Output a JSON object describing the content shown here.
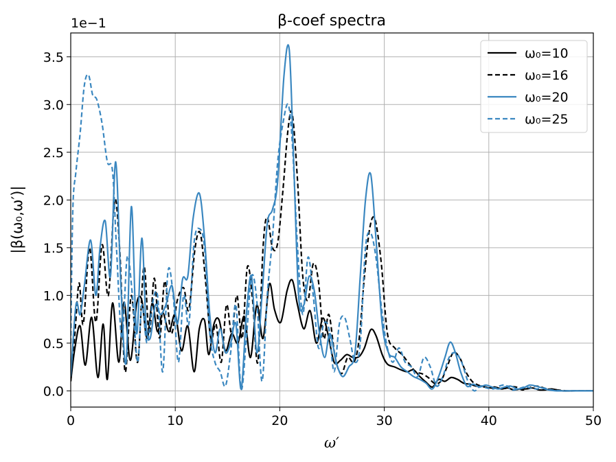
{
  "chart_data": {
    "type": "line",
    "title": "β-coef spectra",
    "xlabel": "ω′",
    "ylabel": "|β(ω₀,ω′)|",
    "y_offset_label": "1e−1",
    "xlim": [
      0,
      50
    ],
    "ylim": [
      -0.17,
      3.75
    ],
    "x_ticks": [
      0,
      10,
      20,
      30,
      40,
      50
    ],
    "y_ticks": [
      0.0,
      0.5,
      1.0,
      1.5,
      2.0,
      2.5,
      3.0,
      3.5
    ],
    "x_tick_labels": [
      "0",
      "10",
      "20",
      "30",
      "40",
      "50"
    ],
    "y_tick_labels": [
      "0.0",
      "0.5",
      "1.0",
      "1.5",
      "2.0",
      "2.5",
      "3.0",
      "3.5"
    ],
    "grid": true,
    "legend_position": "top-right",
    "colors": {
      "black": "#000000",
      "blue": "#3a87c0"
    },
    "series": [
      {
        "name": "ω₀=10",
        "color": "#000000",
        "dash": "solid",
        "x": [
          0,
          0.4,
          0.9,
          1.4,
          2.0,
          2.6,
          3.1,
          3.5,
          4.0,
          4.6,
          5.1,
          5.7,
          6.3,
          6.8,
          7.3,
          7.8,
          8.3,
          8.8,
          9.4,
          10.0,
          10.6,
          11.2,
          11.8,
          12.3,
          12.8,
          13.2,
          13.7,
          14.2,
          14.8,
          15.4,
          16.0,
          16.6,
          17.2,
          17.8,
          18.4,
          19.0,
          19.5,
          20.1,
          20.7,
          21.2,
          21.7,
          22.3,
          22.9,
          23.5,
          24.1,
          24.6,
          25.2,
          25.8,
          26.4,
          27.0,
          27.6,
          28.1,
          28.7,
          29.2,
          29.8,
          30.3,
          31.0,
          31.6,
          32.2,
          32.8,
          33.4,
          34.0,
          34.6,
          35.2,
          35.8,
          36.4,
          37.0,
          37.6,
          38.2,
          38.8,
          39.4,
          40.0,
          40.6,
          41.2,
          41.8,
          42.4,
          43.0,
          43.6,
          44.2,
          44.8,
          45.4,
          46.0,
          47.0,
          48.0,
          49.0,
          50.0
        ],
        "y": [
          0.1,
          0.45,
          0.68,
          0.27,
          0.77,
          0.14,
          0.7,
          0.12,
          0.92,
          0.3,
          0.93,
          0.32,
          0.91,
          0.95,
          0.55,
          0.92,
          0.62,
          0.82,
          0.62,
          0.8,
          0.42,
          0.68,
          0.2,
          0.65,
          0.74,
          0.38,
          0.7,
          0.74,
          0.42,
          0.6,
          0.5,
          0.78,
          0.35,
          0.9,
          0.55,
          1.12,
          0.85,
          0.72,
          1.05,
          1.16,
          0.9,
          0.65,
          0.84,
          0.5,
          0.76,
          0.6,
          0.3,
          0.32,
          0.38,
          0.35,
          0.36,
          0.45,
          0.64,
          0.58,
          0.38,
          0.28,
          0.25,
          0.22,
          0.2,
          0.22,
          0.15,
          0.09,
          0.04,
          0.12,
          0.1,
          0.14,
          0.12,
          0.08,
          0.07,
          0.05,
          0.05,
          0.03,
          0.04,
          0.02,
          0.03,
          0.01,
          0.02,
          0.02,
          0.03,
          0.01,
          0.01,
          0.02,
          0.0,
          0.0,
          0.0,
          0.0
        ]
      },
      {
        "name": "ω₀=16",
        "color": "#000000",
        "dash": "dashed",
        "x": [
          0,
          0.4,
          0.8,
          1.2,
          1.8,
          2.4,
          3.0,
          3.6,
          4.2,
          4.7,
          5.2,
          5.8,
          6.4,
          7.0,
          7.5,
          8.0,
          8.5,
          9.0,
          9.6,
          10.2,
          10.8,
          11.3,
          11.9,
          12.4,
          12.9,
          13.4,
          13.9,
          14.4,
          14.9,
          15.4,
          15.9,
          16.4,
          16.9,
          17.4,
          17.9,
          18.4,
          18.8,
          19.3,
          19.8,
          20.3,
          20.8,
          21.2,
          21.7,
          22.2,
          22.7,
          23.2,
          23.7,
          24.2,
          24.7,
          25.3,
          25.9,
          26.5,
          27.1,
          27.6,
          28.1,
          28.6,
          29.1,
          29.7,
          30.3,
          31.0,
          31.7,
          32.4,
          33.0,
          33.6,
          34.2,
          34.8,
          35.4,
          36.0,
          36.6,
          37.2,
          37.8,
          38.4,
          39.0,
          39.6,
          40.2,
          40.8,
          41.4,
          42.0,
          42.6,
          43.2,
          43.8,
          44.4,
          45.0,
          45.6,
          46.5,
          47.5,
          48.5,
          50.0
        ],
        "y": [
          0.1,
          0.6,
          1.13,
          0.7,
          1.5,
          0.72,
          1.53,
          1.0,
          2.0,
          1.45,
          0.2,
          1.0,
          0.3,
          1.3,
          0.6,
          1.18,
          0.55,
          1.15,
          0.6,
          0.95,
          1.08,
          0.85,
          1.5,
          1.65,
          1.15,
          0.55,
          0.7,
          0.3,
          0.9,
          0.6,
          1.0,
          0.55,
          1.3,
          0.95,
          0.3,
          1.5,
          1.82,
          1.5,
          1.55,
          2.1,
          2.75,
          2.9,
          2.2,
          1.2,
          0.95,
          1.33,
          1.15,
          0.55,
          0.8,
          0.35,
          0.18,
          0.35,
          0.3,
          0.55,
          1.2,
          1.7,
          1.8,
          1.35,
          0.6,
          0.45,
          0.38,
          0.28,
          0.2,
          0.18,
          0.14,
          0.08,
          0.1,
          0.25,
          0.4,
          0.35,
          0.2,
          0.1,
          0.06,
          0.04,
          0.03,
          0.03,
          0.02,
          0.04,
          0.04,
          0.01,
          0.03,
          0.05,
          0.04,
          0.02,
          0.01,
          0.0,
          0.0,
          0.0
        ]
      },
      {
        "name": "ω₀=20",
        "color": "#3a87c0",
        "dash": "solid",
        "x": [
          0,
          0.5,
          0.9,
          1.3,
          1.9,
          2.4,
          2.8,
          3.3,
          3.8,
          4.3,
          4.8,
          5.3,
          5.8,
          6.3,
          6.8,
          7.2,
          7.6,
          8.1,
          8.6,
          9.1,
          9.7,
          10.2,
          10.7,
          11.2,
          11.7,
          12.3,
          12.8,
          13.3,
          13.8,
          14.3,
          14.8,
          15.3,
          15.8,
          16.3,
          16.8,
          17.3,
          17.8,
          18.3,
          18.8,
          19.3,
          19.8,
          20.4,
          20.9,
          21.3,
          21.8,
          22.3,
          22.8,
          23.3,
          23.8,
          24.3,
          24.8,
          25.4,
          26.0,
          26.6,
          27.2,
          27.7,
          28.2,
          28.7,
          29.2,
          29.8,
          30.4,
          31.0,
          31.6,
          32.2,
          32.8,
          33.4,
          34.0,
          34.6,
          35.2,
          35.8,
          36.3,
          36.8,
          37.3,
          37.9,
          38.5,
          39.1,
          39.7,
          40.3,
          40.9,
          41.5,
          42.1,
          42.7,
          43.3,
          43.9,
          44.5,
          45.1,
          45.7,
          46.5,
          47.5,
          48.5,
          50.0
        ],
        "y": [
          0.15,
          0.9,
          0.8,
          1.1,
          1.58,
          1.0,
          1.5,
          1.78,
          1.2,
          2.4,
          1.1,
          0.3,
          1.93,
          0.6,
          1.6,
          0.7,
          0.55,
          0.9,
          0.8,
          0.9,
          1.1,
          0.7,
          1.17,
          1.2,
          1.8,
          2.07,
          1.6,
          0.8,
          0.4,
          0.65,
          0.4,
          0.5,
          0.7,
          0.02,
          0.8,
          1.2,
          0.4,
          1.0,
          1.75,
          1.9,
          2.2,
          3.3,
          3.58,
          2.5,
          1.0,
          0.9,
          1.2,
          1.05,
          0.6,
          0.35,
          0.6,
          0.3,
          0.15,
          0.25,
          0.4,
          1.2,
          2.0,
          2.27,
          1.6,
          0.7,
          0.4,
          0.35,
          0.25,
          0.2,
          0.15,
          0.12,
          0.08,
          0.02,
          0.15,
          0.35,
          0.51,
          0.4,
          0.2,
          0.05,
          0.07,
          0.04,
          0.06,
          0.04,
          0.02,
          0.04,
          0.05,
          0.02,
          0.03,
          0.06,
          0.05,
          0.03,
          0.01,
          0.0,
          0.0,
          0.0,
          0.0
        ]
      },
      {
        "name": "ω₀=25",
        "color": "#3a87c0",
        "dash": "dashed",
        "x": [
          0,
          0.2,
          0.5,
          0.9,
          1.3,
          1.7,
          2.1,
          2.5,
          3.0,
          3.5,
          4.0,
          4.4,
          4.9,
          5.4,
          5.9,
          6.4,
          6.8,
          7.3,
          7.8,
          8.3,
          8.8,
          9.3,
          9.8,
          10.3,
          10.8,
          11.3,
          11.8,
          12.3,
          12.8,
          13.3,
          13.8,
          14.3,
          14.8,
          15.3,
          15.8,
          16.3,
          16.8,
          17.3,
          17.8,
          18.3,
          18.8,
          19.3,
          19.8,
          20.3,
          20.8,
          21.2,
          21.7,
          22.2,
          22.7,
          23.2,
          23.7,
          24.2,
          24.7,
          25.2,
          25.7,
          26.2,
          26.7,
          27.2,
          27.7,
          28.2,
          28.7,
          29.2,
          29.7,
          30.2,
          30.8,
          31.4,
          32.0,
          32.6,
          33.2,
          33.8,
          34.4,
          35.0,
          35.6,
          36.2,
          36.8,
          37.4,
          38.0,
          38.6,
          39.2,
          39.8,
          40.4,
          41.0,
          41.6,
          42.2,
          42.8,
          43.4,
          44.0,
          44.6,
          45.2,
          46.0,
          47.0,
          48.0,
          50.0
        ],
        "y": [
          0.5,
          1.9,
          2.3,
          2.7,
          3.2,
          3.31,
          3.1,
          3.05,
          2.8,
          2.4,
          2.3,
          1.45,
          0.55,
          1.4,
          1.0,
          0.3,
          0.9,
          0.5,
          0.9,
          1.0,
          0.2,
          1.25,
          1.0,
          0.3,
          1.0,
          0.7,
          1.55,
          1.7,
          1.5,
          0.6,
          0.3,
          0.2,
          0.05,
          0.4,
          0.9,
          0.02,
          0.55,
          1.2,
          0.95,
          0.1,
          1.0,
          1.6,
          2.4,
          2.8,
          3.0,
          2.6,
          1.5,
          0.8,
          1.4,
          1.0,
          0.45,
          0.7,
          0.65,
          0.2,
          0.7,
          0.77,
          0.55,
          0.3,
          0.5,
          1.5,
          1.65,
          1.4,
          0.9,
          0.5,
          0.3,
          0.45,
          0.3,
          0.25,
          0.15,
          0.35,
          0.25,
          0.05,
          0.15,
          0.35,
          0.4,
          0.3,
          0.1,
          0.0,
          0.05,
          0.03,
          0.02,
          0.05,
          0.06,
          0.01,
          0.02,
          0.04,
          0.03,
          0.02,
          0.03,
          0.01,
          0.0,
          0.0,
          0.0
        ]
      }
    ]
  }
}
